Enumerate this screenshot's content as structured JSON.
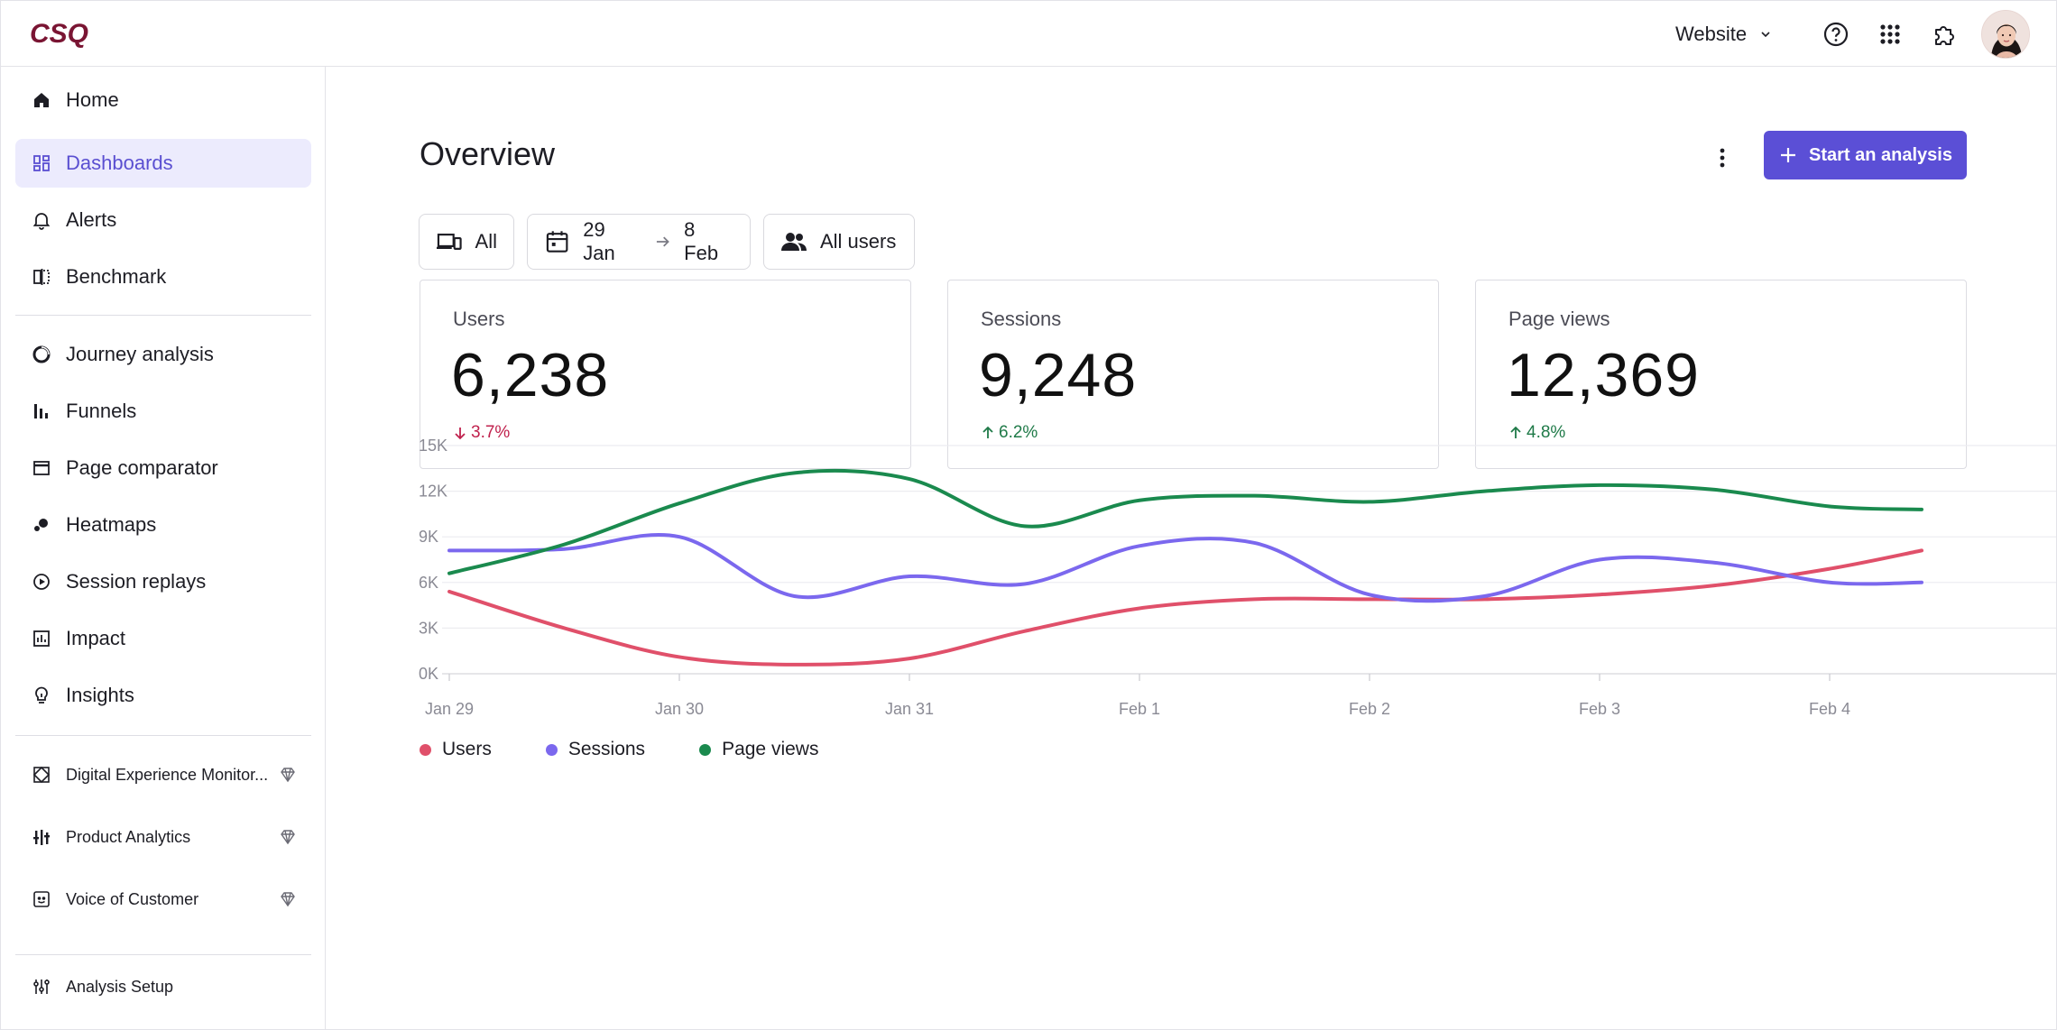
{
  "header": {
    "logo_text": "CSQ",
    "site_selector": "Website",
    "icons": [
      "help-icon",
      "apps-grid-icon",
      "extensions-icon"
    ]
  },
  "sidebar": {
    "group1": [
      {
        "label": "Home",
        "icon": "home-icon"
      },
      {
        "label": "Dashboards",
        "icon": "dashboards-icon",
        "active": true
      },
      {
        "label": "Alerts",
        "icon": "bell-icon"
      },
      {
        "label": "Benchmark",
        "icon": "benchmark-icon"
      }
    ],
    "group2": [
      {
        "label": "Journey analysis",
        "icon": "journey-icon"
      },
      {
        "label": "Funnels",
        "icon": "funnel-icon"
      },
      {
        "label": "Page comparator",
        "icon": "page-comparator-icon"
      },
      {
        "label": "Heatmaps",
        "icon": "heatmap-icon"
      },
      {
        "label": "Session replays",
        "icon": "play-icon"
      },
      {
        "label": "Impact",
        "icon": "impact-icon"
      },
      {
        "label": "Insights",
        "icon": "lightbulb-icon"
      }
    ],
    "group3": [
      {
        "label": "Digital Experience Monitor...",
        "icon": "dem-icon"
      },
      {
        "label": "Product Analytics",
        "icon": "product-analytics-icon"
      },
      {
        "label": "Voice of Customer",
        "icon": "voc-icon"
      }
    ],
    "group4": [
      {
        "label": "Analysis Setup",
        "icon": "settings-sliders-icon"
      }
    ]
  },
  "main": {
    "title": "Overview",
    "primary_button": "Start an analysis",
    "filters": {
      "device": "All",
      "date_from": "29 Jan",
      "date_to": "8 Feb",
      "segment": "All users"
    },
    "kpis": [
      {
        "label": "Users",
        "value": "6,238",
        "delta": "3.7%",
        "direction": "down"
      },
      {
        "label": "Sessions",
        "value": "9,248",
        "delta": "6.2%",
        "direction": "up"
      },
      {
        "label": "Page views",
        "value": "12,369",
        "delta": "4.8%",
        "direction": "up"
      }
    ]
  },
  "colors": {
    "accent": "#5b4fd6",
    "users": "#e0506a",
    "sessions": "#7b68ee",
    "page_views": "#1a8a4e"
  },
  "chart_data": {
    "type": "line",
    "title": "",
    "xlabel": "",
    "ylabel": "",
    "ylim": [
      0,
      15000
    ],
    "y_ticks": [
      "15K",
      "12K",
      "9K",
      "6K",
      "3K",
      "0K"
    ],
    "categories": [
      "Jan 29",
      "Jan 30",
      "Jan 31",
      "Feb 1",
      "Feb 2",
      "Feb 3",
      "Feb 4"
    ],
    "x": [
      0,
      0.5,
      1,
      1.5,
      2,
      2.5,
      3,
      3.5,
      4,
      4.5,
      5,
      5.5,
      6,
      6.4
    ],
    "series": [
      {
        "name": "Users",
        "values": [
          5400,
          3000,
          1100,
          600,
          1000,
          2800,
          4300,
          4900,
          4900,
          4900,
          5200,
          5800,
          6900,
          8100
        ]
      },
      {
        "name": "Sessions",
        "values": [
          8100,
          8200,
          9000,
          5100,
          6400,
          5900,
          8400,
          8600,
          5200,
          5100,
          7500,
          7300,
          6000,
          6000
        ]
      },
      {
        "name": "Page views",
        "values": [
          6600,
          8500,
          11200,
          13200,
          12800,
          9700,
          11400,
          11700,
          11300,
          12000,
          12400,
          12100,
          11000,
          10800
        ]
      }
    ],
    "grid": true,
    "legend_position": "bottom-left"
  }
}
